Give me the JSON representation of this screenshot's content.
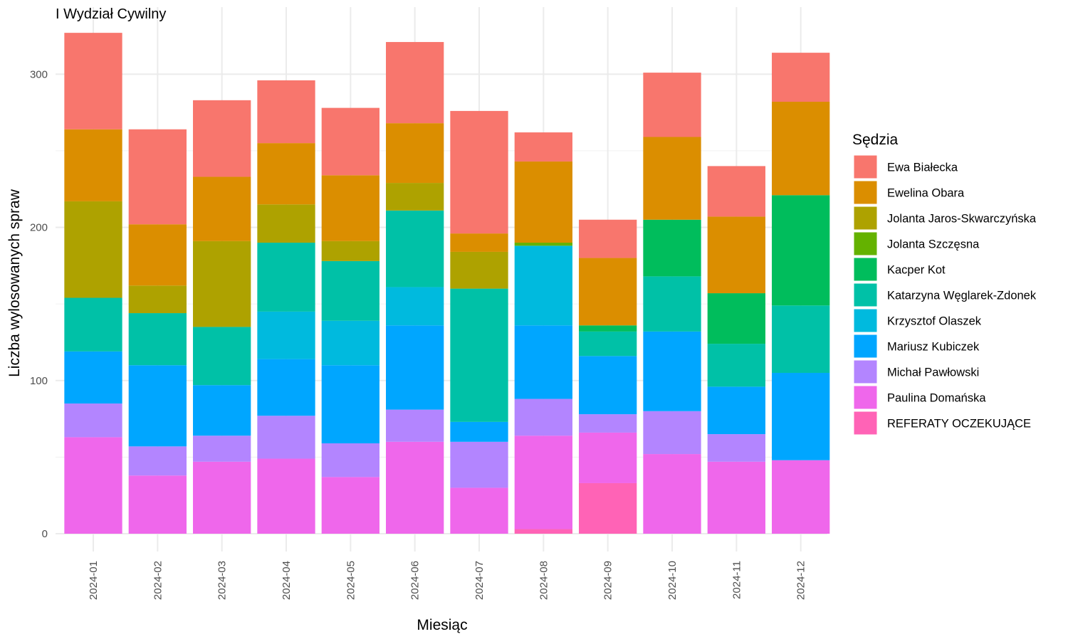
{
  "chart_data": {
    "type": "bar",
    "stacked": true,
    "title": "I Wydział Cywilny",
    "xlabel": "Miesiąc",
    "ylabel": "Liczba wylosowanych spraw",
    "ylim": [
      0,
      330
    ],
    "y_ticks": [
      0,
      100,
      200,
      300
    ],
    "grid": true,
    "legend_title": "Sędzia",
    "legend_position": "right",
    "categories": [
      "2024-01",
      "2024-02",
      "2024-03",
      "2024-04",
      "2024-05",
      "2024-06",
      "2024-07",
      "2024-08",
      "2024-09",
      "2024-10",
      "2024-11",
      "2024-12"
    ],
    "series": [
      {
        "name": "Ewa Białecka",
        "color": "#F8766D",
        "values": [
          63,
          62,
          50,
          41,
          44,
          53,
          80,
          19,
          25,
          42,
          33,
          32
        ]
      },
      {
        "name": "Ewelina Obara",
        "color": "#DB8E00",
        "values": [
          47,
          40,
          42,
          40,
          43,
          39,
          12,
          53,
          44,
          54,
          50,
          61
        ]
      },
      {
        "name": "Jolanta Jaros-Skwarczyńska",
        "color": "#AEA200",
        "values": [
          63,
          18,
          56,
          25,
          13,
          18,
          24,
          0,
          0,
          0,
          0,
          0
        ]
      },
      {
        "name": "Jolanta Szczęsna",
        "color": "#64B200",
        "values": [
          0,
          0,
          0,
          0,
          0,
          0,
          0,
          2,
          0,
          0,
          0,
          0
        ]
      },
      {
        "name": "Kacper Kot",
        "color": "#00BD5C",
        "values": [
          0,
          0,
          0,
          0,
          0,
          0,
          0,
          0,
          4,
          37,
          33,
          72
        ]
      },
      {
        "name": "Katarzyna Węglarek-Zdonek",
        "color": "#00C1A7",
        "values": [
          35,
          34,
          38,
          45,
          39,
          50,
          87,
          0,
          16,
          36,
          28,
          44
        ]
      },
      {
        "name": "Krzysztof Olaszek",
        "color": "#00BADE",
        "values": [
          0,
          0,
          0,
          31,
          29,
          25,
          0,
          52,
          0,
          0,
          0,
          0
        ]
      },
      {
        "name": "Mariusz Kubiczek",
        "color": "#00A6FF",
        "values": [
          34,
          53,
          33,
          37,
          51,
          55,
          13,
          48,
          38,
          52,
          31,
          57
        ]
      },
      {
        "name": "Michał Pawłowski",
        "color": "#B385FF",
        "values": [
          22,
          19,
          17,
          28,
          22,
          21,
          30,
          24,
          12,
          28,
          18,
          0
        ]
      },
      {
        "name": "Paulina Domańska",
        "color": "#EF67EB",
        "values": [
          63,
          38,
          47,
          49,
          37,
          60,
          30,
          61,
          33,
          52,
          47,
          48
        ]
      },
      {
        "name": "REFERATY OCZEKUJĄCE",
        "color": "#FF63B6",
        "values": [
          0,
          0,
          0,
          0,
          0,
          0,
          0,
          3,
          33,
          0,
          0,
          0
        ]
      }
    ]
  }
}
